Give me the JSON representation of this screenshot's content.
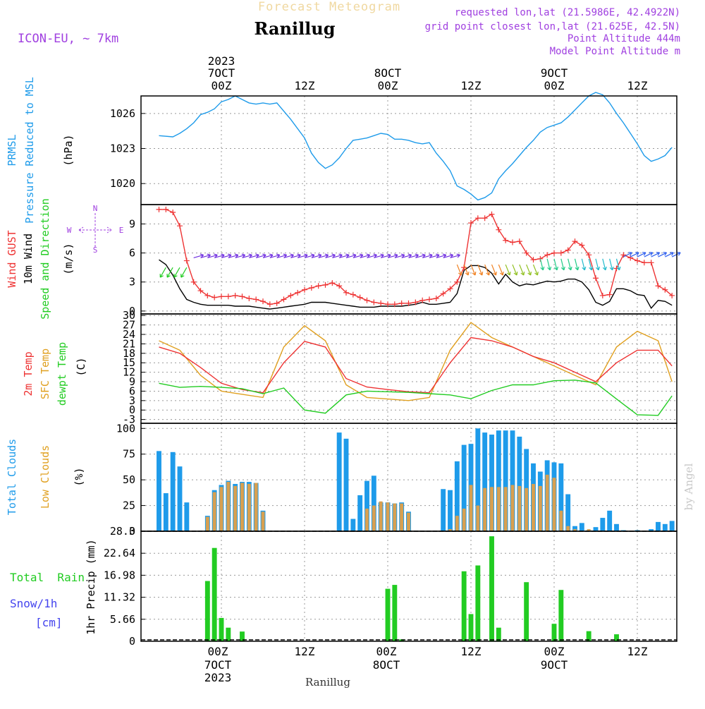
{
  "header": {
    "subtitle": "Forecast Meteogram",
    "title": "Ranillug",
    "model": "ICON-EU, ~ 7km",
    "info": [
      "requested lon,lat (21.5986E, 42.4922N)",
      "grid point closest lon,lat (21.625E, 42.5N)",
      "Point Altitude 444m",
      "Model Point Altitude m"
    ],
    "footer": "Ranillug",
    "watermark": "by Angel"
  },
  "time_axis": {
    "top_labels": [
      {
        "lines": [
          "2023",
          "7OCT",
          "00Z"
        ],
        "hour": 0
      },
      {
        "lines": [
          "12Z"
        ],
        "hour": 12
      },
      {
        "lines": [
          "8OCT",
          "00Z"
        ],
        "hour": 24
      },
      {
        "lines": [
          "12Z"
        ],
        "hour": 36
      },
      {
        "lines": [
          "9OCT",
          "00Z"
        ],
        "hour": 48
      },
      {
        "lines": [
          "12Z"
        ],
        "hour": 60
      }
    ],
    "bottom_labels": [
      {
        "lines": [
          "00Z",
          "7OCT",
          "2023"
        ],
        "hour": 0
      },
      {
        "lines": [
          "12Z"
        ],
        "hour": 12
      },
      {
        "lines": [
          "00Z",
          "8OCT"
        ],
        "hour": 24
      },
      {
        "lines": [
          "12Z"
        ],
        "hour": 36
      },
      {
        "lines": [
          "00Z",
          "9OCT"
        ],
        "hour": 48
      },
      {
        "lines": [
          "12Z"
        ],
        "hour": 60
      }
    ]
  },
  "colors": {
    "pressure": "#1e9bea",
    "gust": "#ee3333",
    "wind": "#000000",
    "t2m": "#ee3333",
    "sfc": "#e0a020",
    "dew": "#22cc22",
    "cloud_total": "#1e9bea",
    "cloud_low": "#d8a050",
    "rain": "#22cc22",
    "snow": "#4444ee",
    "info": "#a040e0",
    "subtitle": "#f0d8a0"
  },
  "panels": {
    "pressure": {
      "labels": [
        "PRMSL",
        "Pressure Reduced to MSL"
      ],
      "unit": "(hPa)",
      "ticks": [
        "1020",
        "1023",
        "1026"
      ]
    },
    "wind": {
      "labels": [
        "Wind GUST",
        "10m Wind",
        "Speed and Direction"
      ],
      "unit": "(m/s)",
      "ticks": [
        "0",
        "3",
        "6",
        "9"
      ],
      "compass": [
        "N",
        "W",
        "E",
        "S"
      ]
    },
    "temp": {
      "labels": [
        "2m Temp",
        "SFC Temp",
        "dewpt Temp"
      ],
      "unit": "(C)",
      "ticks": [
        "-3",
        "0",
        "3",
        "6",
        "9",
        "12",
        "15",
        "18",
        "21",
        "24",
        "27",
        "30"
      ]
    },
    "clouds": {
      "labels": [
        "Total Clouds",
        "Low Clouds"
      ],
      "unit": "(%)",
      "ticks": [
        "0",
        "25",
        "50",
        "75",
        "100"
      ]
    },
    "precip": {
      "labels": [
        "Total  Rain",
        "Snow/1h",
        "[cm]"
      ],
      "unit": "1hr Precip (mm)",
      "ticks": [
        "0",
        "5.66",
        "11.32",
        "16.98",
        "22.64",
        "28.3"
      ]
    }
  },
  "chart_data": [
    {
      "type": "line",
      "title": "PRMSL Pressure Reduced to MSL",
      "ylabel": "hPa",
      "ylim": [
        1018.2,
        1027.5
      ],
      "x_unit": "hours from 2023-10-07 00Z",
      "series": [
        {
          "name": "PRMSL",
          "x": [
            -9,
            -7,
            -6,
            -5,
            -4,
            -3,
            -2,
            -1,
            0,
            1,
            2,
            3,
            4,
            5,
            6,
            7,
            8,
            10,
            12,
            13,
            14,
            15,
            16,
            17,
            18,
            19,
            20,
            21,
            22,
            23,
            24,
            25,
            26,
            27,
            28,
            29,
            30,
            31,
            32,
            33,
            34,
            35,
            36,
            37,
            38,
            39,
            40,
            41,
            42,
            43,
            44,
            45,
            46,
            47,
            48,
            49,
            50,
            51,
            52,
            53,
            54,
            55,
            56,
            57,
            58,
            59,
            60,
            61,
            62,
            63,
            64,
            65
          ],
          "values": [
            1024.1,
            1024.0,
            1024.3,
            1024.7,
            1025.2,
            1025.9,
            1026.1,
            1026.4,
            1027.0,
            1027.2,
            1027.5,
            1027.2,
            1026.9,
            1026.8,
            1026.9,
            1026.8,
            1026.9,
            1025.5,
            1023.9,
            1022.6,
            1021.8,
            1021.3,
            1021.6,
            1022.2,
            1023.0,
            1023.7,
            1023.8,
            1023.9,
            1024.1,
            1024.3,
            1024.2,
            1023.8,
            1023.8,
            1023.7,
            1023.5,
            1023.4,
            1023.5,
            1022.6,
            1021.9,
            1021.1,
            1019.8,
            1019.5,
            1019.1,
            1018.6,
            1018.8,
            1019.2,
            1020.4,
            1021.1,
            1021.7,
            1022.4,
            1023.1,
            1023.7,
            1024.4,
            1024.8,
            1025.0,
            1025.2,
            1025.7,
            1026.3,
            1026.9,
            1027.5,
            1027.8,
            1027.6,
            1026.9,
            1026.0,
            1025.2,
            1024.3,
            1023.4,
            1022.4,
            1021.9,
            1022.1,
            1022.4,
            1023.1
          ]
        }
      ]
    },
    {
      "type": "line",
      "title": "Wind GUST / 10m Wind Speed and Direction",
      "ylabel": "m/s",
      "ylim": [
        -0.3,
        11
      ],
      "x_unit": "hours from 2023-10-07 00Z",
      "series": [
        {
          "name": "Wind GUST",
          "x": [
            -9,
            -8,
            -7,
            -6,
            -5,
            -4,
            -3,
            -2,
            -1,
            0,
            1,
            2,
            3,
            4,
            5,
            6,
            7,
            8,
            9,
            10,
            11,
            12,
            13,
            14,
            15,
            16,
            17,
            18,
            19,
            20,
            21,
            22,
            23,
            24,
            25,
            26,
            27,
            28,
            29,
            30,
            31,
            32,
            33,
            34,
            35,
            36,
            37,
            38,
            39,
            40,
            41,
            42,
            43,
            44,
            45,
            46,
            47,
            48,
            49,
            50,
            51,
            52,
            53,
            54,
            55,
            56,
            57,
            58,
            59,
            60,
            61,
            62,
            63,
            64,
            65
          ],
          "values": [
            10.5,
            10.5,
            10.2,
            8.8,
            5.2,
            3.0,
            2.1,
            1.6,
            1.4,
            1.5,
            1.5,
            1.6,
            1.5,
            1.3,
            1.2,
            1.0,
            0.7,
            0.8,
            1.2,
            1.6,
            1.9,
            2.2,
            2.4,
            2.6,
            2.7,
            2.9,
            2.6,
            1.9,
            1.7,
            1.4,
            1.1,
            0.9,
            0.8,
            0.7,
            0.7,
            0.8,
            0.8,
            0.9,
            1.1,
            1.2,
            1.3,
            1.8,
            2.3,
            3.0,
            4.5,
            9.1,
            9.6,
            9.6,
            10.0,
            8.4,
            7.3,
            7.1,
            7.2,
            6.0,
            5.3,
            5.4,
            5.8,
            6.0,
            6.0,
            6.3,
            7.2,
            6.8,
            5.8,
            3.4,
            1.6,
            1.7,
            4.4,
            5.8,
            5.5,
            5.2,
            5.0,
            5.0,
            2.6,
            2.2,
            1.6
          ]
        },
        {
          "name": "10m Wind",
          "x": [
            -9,
            -8,
            -7,
            -6,
            -5,
            -4,
            -3,
            -2,
            -1,
            0,
            1,
            2,
            3,
            4,
            5,
            6,
            7,
            8,
            9,
            10,
            11,
            12,
            13,
            14,
            15,
            16,
            17,
            18,
            19,
            20,
            21,
            22,
            23,
            24,
            25,
            26,
            27,
            28,
            29,
            30,
            31,
            32,
            33,
            34,
            35,
            36,
            37,
            38,
            39,
            40,
            41,
            42,
            43,
            44,
            45,
            46,
            47,
            48,
            49,
            50,
            51,
            52,
            53,
            54,
            55,
            56,
            57,
            58,
            59,
            60,
            61,
            62,
            63,
            64,
            65
          ],
          "values": [
            5.3,
            4.8,
            3.7,
            2.3,
            1.2,
            0.9,
            0.7,
            0.6,
            0.6,
            0.6,
            0.6,
            0.5,
            0.5,
            0.5,
            0.4,
            0.3,
            0.2,
            0.3,
            0.4,
            0.5,
            0.6,
            0.7,
            0.9,
            0.9,
            0.9,
            0.8,
            0.7,
            0.6,
            0.5,
            0.4,
            0.4,
            0.4,
            0.5,
            0.5,
            0.5,
            0.5,
            0.6,
            0.7,
            0.9,
            0.7,
            0.7,
            0.8,
            0.9,
            1.8,
            4.2,
            4.7,
            4.7,
            4.5,
            3.9,
            2.8,
            3.8,
            3.0,
            2.6,
            2.8,
            2.7,
            2.9,
            3.1,
            3.0,
            3.1,
            3.3,
            3.3,
            3.0,
            2.2,
            0.9,
            0.6,
            1.0,
            2.3,
            2.3,
            2.1,
            1.7,
            1.6,
            0.3,
            1.1,
            1.0,
            0.6
          ]
        }
      ]
    },
    {
      "type": "line",
      "title": "2m Temp / SFC Temp / dewpt Temp",
      "ylabel": "C",
      "ylim": [
        -4.2,
        30.5
      ],
      "x_unit": "hours from 2023-10-07 00Z",
      "series": [
        {
          "name": "2m Temp",
          "x": [
            -9,
            -6,
            -3,
            0,
            3,
            6,
            9,
            12,
            15,
            18,
            21,
            24,
            27,
            30,
            33,
            36,
            39,
            42,
            45,
            48,
            51,
            54,
            57,
            60,
            63,
            65
          ],
          "values": [
            20,
            18,
            13.5,
            8.5,
            6.5,
            5.5,
            15,
            21.8,
            20,
            10,
            7.3,
            6.5,
            5.8,
            5.5,
            15,
            23,
            22,
            20,
            17,
            15,
            12,
            9,
            15,
            19,
            19,
            14
          ]
        },
        {
          "name": "SFC Temp",
          "x": [
            -9,
            -6,
            -3,
            0,
            3,
            6,
            9,
            12,
            15,
            18,
            21,
            24,
            27,
            30,
            33,
            36,
            39,
            42,
            45,
            48,
            51,
            54,
            57,
            60,
            63,
            65
          ],
          "values": [
            22,
            19,
            11,
            6,
            5,
            4,
            20,
            26.8,
            22,
            8,
            4,
            3.5,
            3,
            4,
            19,
            27.8,
            23,
            20,
            17,
            14,
            11,
            8,
            20,
            25,
            22,
            9
          ]
        },
        {
          "name": "dewpt Temp",
          "x": [
            -9,
            -6,
            -3,
            0,
            3,
            6,
            9,
            12,
            15,
            18,
            21,
            24,
            27,
            30,
            33,
            36,
            39,
            42,
            45,
            48,
            51,
            54,
            57,
            60,
            63,
            65
          ],
          "values": [
            8.5,
            7.2,
            7.5,
            7.2,
            6.8,
            5.2,
            7,
            0,
            -1,
            4.8,
            6,
            5.8,
            5.6,
            5.2,
            4.8,
            3.6,
            6.2,
            8,
            8,
            9.3,
            9.5,
            8.6,
            3.5,
            -1.5,
            -1.7,
            4.5
          ]
        }
      ]
    },
    {
      "type": "bar",
      "title": "Total Clouds / Low Clouds",
      "ylabel": "%",
      "ylim": [
        0,
        105
      ],
      "x_unit": "hours from 2023-10-07 00Z",
      "series": [
        {
          "name": "Total Clouds",
          "x": [
            -9,
            -8,
            -7,
            -6,
            -5,
            -2,
            -1,
            0,
            1,
            2,
            3,
            4,
            5,
            6,
            7,
            17,
            18,
            19,
            20,
            21,
            22,
            23,
            24,
            25,
            26,
            27,
            28,
            32,
            33,
            34,
            35,
            36,
            37,
            38,
            39,
            40,
            41,
            42,
            43,
            44,
            45,
            46,
            47,
            48,
            49,
            50,
            51,
            52,
            53,
            54,
            55,
            56,
            57,
            58,
            59,
            60,
            61,
            62,
            63,
            64,
            65
          ],
          "values": [
            78,
            37,
            77,
            63,
            28,
            15,
            40,
            45,
            49,
            46,
            48,
            48,
            47,
            20,
            0,
            96,
            90,
            12,
            35,
            49,
            54,
            28,
            28,
            27,
            28,
            19,
            0,
            41,
            40,
            68,
            84,
            85,
            100,
            96,
            94,
            98,
            98,
            98,
            92,
            80,
            66,
            58,
            69,
            67,
            66,
            36,
            5,
            8,
            1,
            4,
            13,
            20,
            7,
            1,
            0,
            1,
            0,
            2,
            9,
            7,
            10
          ],
          "note": "bars plotted at bin positions"
        },
        {
          "name": "Low Clouds",
          "x": [
            -2,
            -1,
            0,
            1,
            2,
            3,
            4,
            5,
            6,
            21,
            22,
            23,
            24,
            25,
            26,
            27,
            33,
            34,
            35,
            36,
            37,
            38,
            39,
            40,
            41,
            42,
            43,
            44,
            45,
            46,
            47,
            48,
            49,
            50,
            51,
            52,
            53,
            54,
            55,
            56
          ],
          "values": [
            14,
            38,
            43,
            48,
            44,
            47,
            46,
            47,
            19,
            22,
            25,
            29,
            28,
            27,
            27,
            18,
            2,
            15,
            22,
            45,
            25,
            42,
            43,
            43,
            43,
            45,
            44,
            42,
            46,
            44,
            55,
            52,
            20,
            5,
            2,
            0,
            2,
            0,
            0,
            0
          ]
        }
      ]
    },
    {
      "type": "bar",
      "title": "1hr Precip (mm)",
      "ylabel": "1hr Precip (mm)",
      "ylim": [
        0,
        28.3
      ],
      "x_unit": "hours from 2023-10-07 00Z",
      "series": [
        {
          "name": "Total Rain",
          "x": [
            -2,
            -1,
            0,
            1,
            3,
            24,
            25,
            26,
            35,
            36,
            37,
            39,
            40,
            44,
            48,
            49,
            53,
            57
          ],
          "values": [
            15.5,
            24,
            6,
            3.5,
            2.5,
            13.5,
            14.5,
            0.5,
            18,
            7,
            19.5,
            27,
            3.5,
            15.2,
            4.5,
            13.2,
            2.6,
            1.8
          ]
        }
      ]
    }
  ]
}
